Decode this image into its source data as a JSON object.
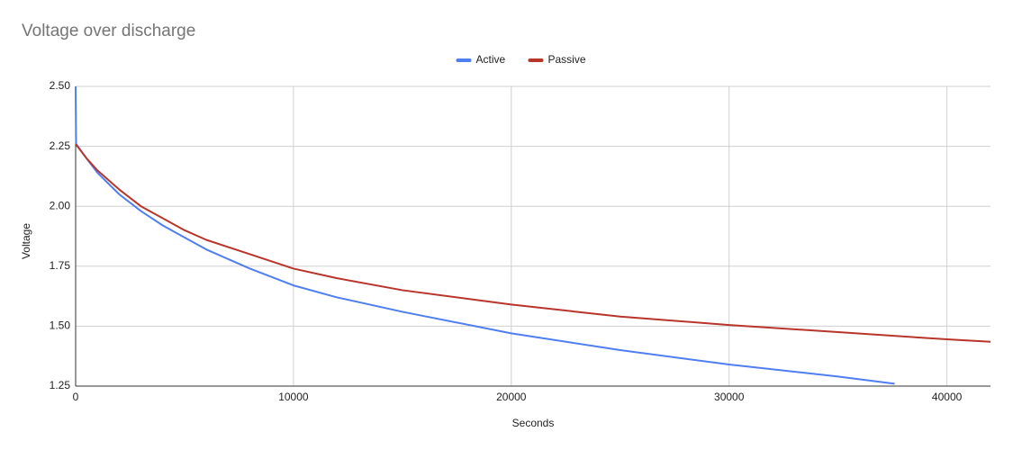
{
  "chart_data": {
    "type": "line",
    "title": "Voltage over discharge",
    "x_label": "Seconds",
    "y_label": "Voltage",
    "xlim": [
      0,
      42000
    ],
    "xticks": [
      0,
      10000,
      20000,
      30000,
      40000
    ],
    "ylim": [
      1.25,
      2.5
    ],
    "yticks": [
      {
        "value": 1.25,
        "label": "1.25"
      },
      {
        "value": 1.5,
        "label": "1.50"
      },
      {
        "value": 1.75,
        "label": "1.75"
      },
      {
        "value": 2.0,
        "label": "2.00"
      },
      {
        "value": 2.25,
        "label": "2.25"
      },
      {
        "value": 2.5,
        "label": "2.50"
      }
    ],
    "grid": true,
    "legend": "top",
    "series": [
      {
        "name": "Active",
        "color": "#4f7ef0",
        "x": [
          0,
          20,
          500,
          1000,
          2000,
          3000,
          4000,
          5000,
          6000,
          8000,
          10000,
          12000,
          15000,
          20000,
          25000,
          30000,
          35000,
          37600
        ],
        "values": [
          2.5,
          2.26,
          2.2,
          2.14,
          2.05,
          1.98,
          1.92,
          1.87,
          1.82,
          1.74,
          1.67,
          1.62,
          1.56,
          1.47,
          1.4,
          1.34,
          1.29,
          1.26
        ]
      },
      {
        "name": "Passive",
        "color": "#b7352b",
        "x": [
          0,
          500,
          1000,
          2000,
          3000,
          4000,
          5000,
          6000,
          8000,
          10000,
          12000,
          15000,
          20000,
          25000,
          30000,
          35000,
          40000,
          42000
        ],
        "values": [
          2.26,
          2.2,
          2.15,
          2.07,
          2.0,
          1.95,
          1.9,
          1.86,
          1.8,
          1.74,
          1.7,
          1.65,
          1.59,
          1.54,
          1.505,
          1.475,
          1.445,
          1.435
        ]
      }
    ]
  }
}
